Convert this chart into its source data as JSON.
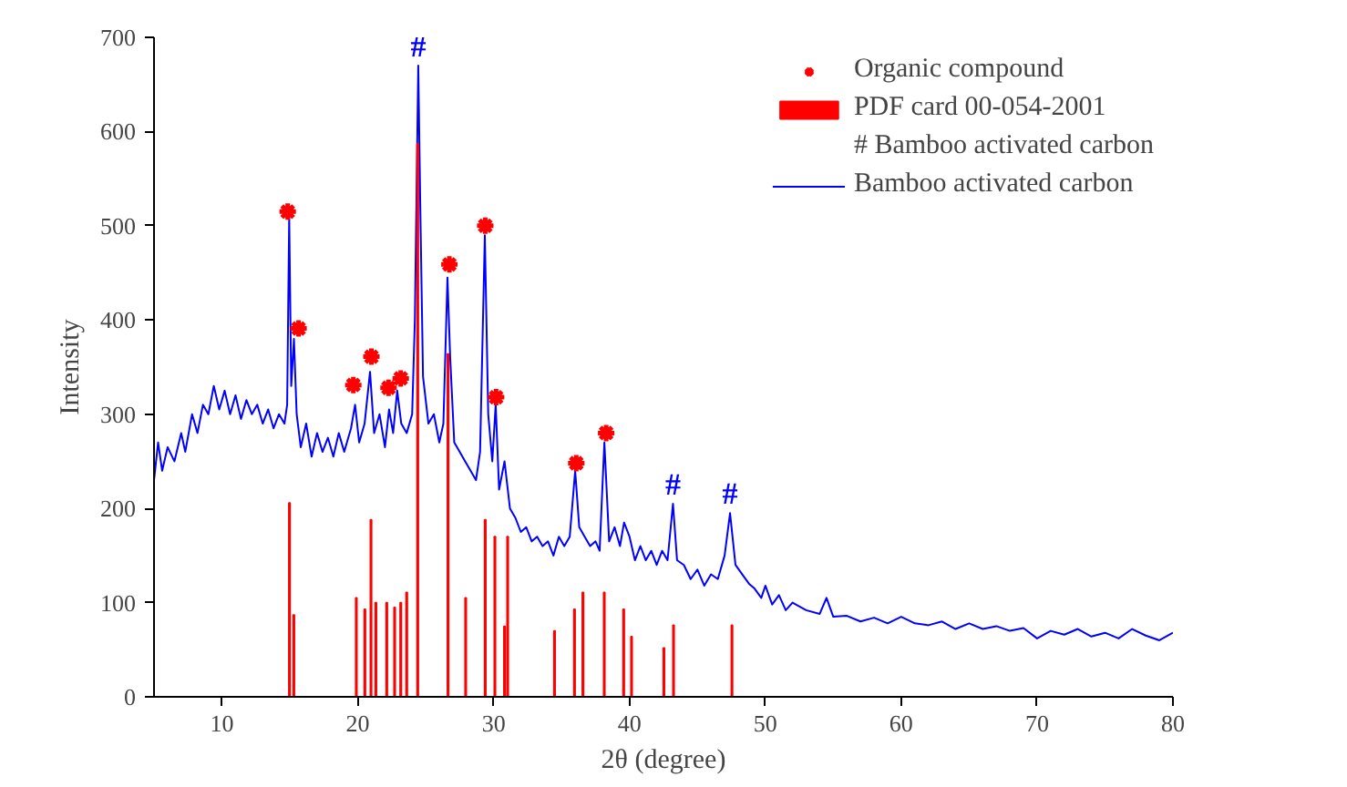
{
  "chart_data": {
    "type": "line",
    "xlabel": "2θ (degree)",
    "ylabel": "Intensity",
    "xlim": [
      5,
      80
    ],
    "xticks": [
      10,
      20,
      30,
      40,
      50,
      60,
      70,
      80
    ],
    "ylim": [
      0,
      700
    ],
    "yticks": [
      0,
      100,
      200,
      300,
      400,
      500,
      600,
      700
    ],
    "grid": false,
    "legend": "top right",
    "annotations": [
      {
        "text": "#",
        "x": 24.45,
        "y": 670
      },
      {
        "text": "#",
        "x": 43.2,
        "y": 205
      },
      {
        "text": "#",
        "x": 47.4,
        "y": 195
      },
      "# Bamboo activated carbon"
    ],
    "series": [
      {
        "name": "Organic compound",
        "type": "scatter",
        "marker": "cross",
        "color": "#ff0000",
        "x": [
          14.84,
          15.64,
          19.67,
          21.0,
          22.26,
          23.16,
          26.74,
          29.38,
          30.18,
          36.08,
          38.28
        ],
        "values": [
          515,
          391,
          331,
          361,
          328,
          338,
          459,
          500,
          318,
          248,
          280
        ]
      },
      {
        "name": "PDF card 00-054-2001",
        "type": "bar",
        "color": "#ff0000",
        "x": [
          14.97,
          15.29,
          19.89,
          20.52,
          20.97,
          21.33,
          22.13,
          22.71,
          23.16,
          23.6,
          24.41,
          26.64,
          27.94,
          29.38,
          30.09,
          30.8,
          31.03,
          34.48,
          35.95,
          36.57,
          38.14,
          39.57,
          40.15,
          42.53,
          43.24,
          47.54
        ],
        "values": [
          206,
          87,
          105,
          93,
          188,
          100,
          100,
          95,
          100,
          111,
          587,
          364,
          105,
          188,
          170,
          75,
          170,
          70,
          93,
          111,
          111,
          93,
          64,
          52,
          76,
          76
        ]
      },
      {
        "name": "Bamboo activated carbon",
        "color": "#0000ff",
        "x": [
          5.0,
          5.3,
          5.6,
          6.0,
          6.5,
          7.0,
          7.3,
          7.8,
          8.2,
          8.6,
          9.0,
          9.4,
          9.8,
          10.2,
          10.6,
          11.0,
          11.4,
          11.8,
          12.2,
          12.6,
          13.0,
          13.4,
          13.8,
          14.2,
          14.6,
          14.8,
          14.95,
          15.1,
          15.3,
          15.5,
          15.8,
          16.2,
          16.6,
          17.0,
          17.4,
          17.8,
          18.2,
          18.6,
          19.0,
          19.5,
          19.8,
          20.1,
          20.5,
          20.9,
          21.2,
          21.6,
          22.0,
          22.3,
          22.6,
          22.9,
          23.2,
          23.6,
          24.0,
          24.2,
          24.45,
          24.6,
          24.8,
          25.2,
          25.6,
          26.0,
          26.3,
          26.6,
          26.8,
          27.1,
          27.5,
          27.9,
          28.3,
          28.7,
          29.0,
          29.35,
          29.6,
          29.9,
          30.15,
          30.4,
          30.8,
          31.2,
          31.6,
          32.0,
          32.4,
          32.8,
          33.2,
          33.6,
          34.0,
          34.4,
          34.8,
          35.2,
          35.6,
          36.0,
          36.3,
          36.7,
          37.1,
          37.5,
          37.8,
          38.15,
          38.5,
          38.9,
          39.3,
          39.6,
          40.0,
          40.4,
          40.8,
          41.2,
          41.6,
          42.0,
          42.4,
          42.8,
          43.2,
          43.5,
          44.0,
          44.5,
          45.0,
          45.5,
          46.0,
          46.5,
          47.0,
          47.4,
          47.8,
          48.3,
          48.8,
          49.2,
          49.7,
          50.0,
          50.5,
          51.0,
          51.5,
          52.0,
          53,
          54,
          54.5,
          55,
          56,
          57,
          58,
          59,
          60,
          61,
          62,
          63,
          64,
          65,
          66,
          67,
          68,
          69,
          70,
          71,
          72,
          73,
          74,
          75,
          76,
          77,
          78,
          79,
          80
        ],
        "values": [
          230,
          270,
          240,
          265,
          250,
          280,
          260,
          300,
          280,
          310,
          300,
          330,
          305,
          325,
          300,
          320,
          295,
          315,
          300,
          310,
          290,
          305,
          285,
          300,
          290,
          310,
          510,
          330,
          380,
          300,
          265,
          290,
          255,
          280,
          260,
          275,
          255,
          280,
          260,
          285,
          310,
          270,
          290,
          345,
          280,
          300,
          265,
          305,
          280,
          325,
          290,
          280,
          300,
          400,
          670,
          520,
          340,
          290,
          300,
          270,
          290,
          445,
          360,
          270,
          260,
          250,
          240,
          230,
          260,
          490,
          300,
          250,
          310,
          220,
          250,
          200,
          190,
          175,
          180,
          165,
          170,
          160,
          165,
          150,
          170,
          160,
          170,
          240,
          180,
          170,
          160,
          165,
          155,
          270,
          165,
          180,
          160,
          185,
          170,
          145,
          160,
          145,
          155,
          140,
          155,
          145,
          205,
          145,
          140,
          125,
          135,
          118,
          130,
          125,
          150,
          195,
          140,
          130,
          120,
          115,
          105,
          118,
          98,
          108,
          92,
          100,
          92,
          88,
          105,
          85,
          86,
          80,
          84,
          78,
          85,
          78,
          76,
          80,
          72,
          78,
          72,
          75,
          70,
          73,
          62,
          70,
          66,
          72,
          64,
          68,
          62,
          72,
          65,
          60,
          68
        ]
      }
    ]
  }
}
